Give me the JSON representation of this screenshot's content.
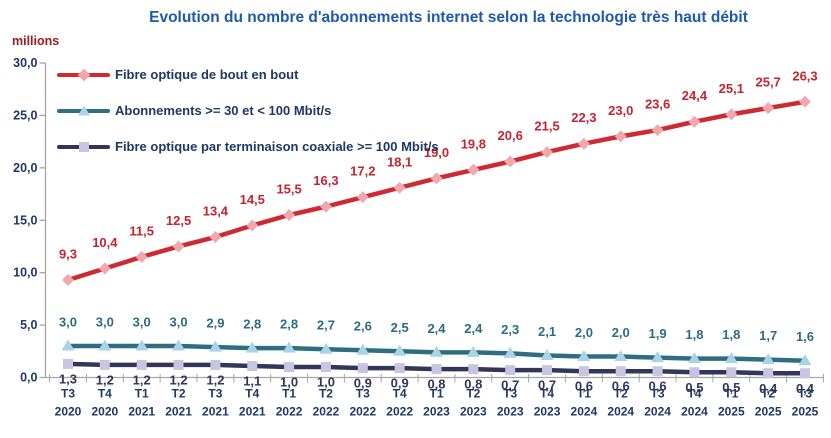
{
  "title": "Evolution du nombre d'abonnements internet selon la technologie très haut débit",
  "y_axis": {
    "unit_label": "millions",
    "tick_labels": [
      "30,0",
      "25,0",
      "20,0",
      "15,0",
      "10,0",
      "5,0",
      "0,0"
    ]
  },
  "colors": {
    "title": "#1E5AAA",
    "axis_text": "#1F3864",
    "unit_label": "#9C1B20",
    "axis_line": "#A6A6A6"
  },
  "chart_data": {
    "type": "line",
    "title": "Evolution du nombre d'abonnements internet selon la technologie très haut débit",
    "ylabel": "millions",
    "xlabel": "",
    "ylim": [
      0,
      30
    ],
    "y_tick_step": 5,
    "grid": false,
    "legend_position": "inside-top-left",
    "number_format": "decimal-comma",
    "categories": [
      "T3 2020",
      "T4 2020",
      "T1 2021",
      "T2 2021",
      "T3 2021",
      "T4 2021",
      "T1 2022",
      "T2 2022",
      "T3 2022",
      "T4 2022",
      "T1 2023",
      "T2 2023",
      "T3 2023",
      "T4 2023",
      "T1 2024",
      "T2 2024",
      "T3 2024",
      "T4 2024",
      "T1 2025",
      "T2 2025",
      "T3 2025"
    ],
    "series": [
      {
        "name": "Fibre optique de bout en bout",
        "color": "#CE2A32",
        "marker": "diamond",
        "marker_color": "#EFA9AE",
        "label_color": "#C32430",
        "label_position": "above",
        "values": [
          9.3,
          10.4,
          11.5,
          12.5,
          13.4,
          14.5,
          15.5,
          16.3,
          17.2,
          18.1,
          19.0,
          19.8,
          20.6,
          21.5,
          22.3,
          23.0,
          23.6,
          24.4,
          25.1,
          25.7,
          26.3
        ]
      },
      {
        "name": "Abonnements >= 30 et < 100 Mbit/s",
        "color": "#2E6E80",
        "marker": "triangle",
        "marker_color": "#A9D3E6",
        "label_color": "#2B6C85",
        "label_position": "above",
        "values": [
          3.0,
          3.0,
          3.0,
          3.0,
          2.9,
          2.8,
          2.8,
          2.7,
          2.6,
          2.5,
          2.4,
          2.4,
          2.3,
          2.1,
          2.0,
          2.0,
          1.9,
          1.8,
          1.8,
          1.7,
          1.6
        ]
      },
      {
        "name": "Fibre optique par terminaison coaxiale >= 100 Mbit/s",
        "color": "#32365A",
        "marker": "square",
        "marker_color": "#C7C5E1",
        "label_color": "#31355C",
        "label_position": "below",
        "values": [
          1.3,
          1.2,
          1.2,
          1.2,
          1.2,
          1.1,
          1.0,
          1.0,
          0.9,
          0.9,
          0.8,
          0.8,
          0.7,
          0.7,
          0.6,
          0.6,
          0.6,
          0.5,
          0.5,
          0.4,
          0.4
        ]
      }
    ]
  }
}
